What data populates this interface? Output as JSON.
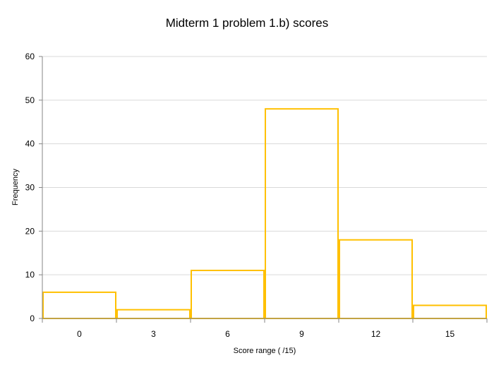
{
  "chart_data": {
    "type": "bar",
    "title": "Midterm 1 problem 1.b) scores",
    "xlabel": "Score range ( /15)",
    "ylabel": "Frequency",
    "categories": [
      "0",
      "3",
      "6",
      "9",
      "12",
      "15"
    ],
    "values": [
      6,
      2,
      11,
      48,
      18,
      3
    ],
    "ylim": [
      0,
      60
    ],
    "yticks": [
      0,
      10,
      20,
      30,
      40,
      50,
      60
    ],
    "grid": true,
    "legend": "none",
    "bar_outline_color": "#FFC000",
    "bar_fill": "none",
    "gridline_color": "#d9d9d9",
    "axis_color": "#868686"
  }
}
